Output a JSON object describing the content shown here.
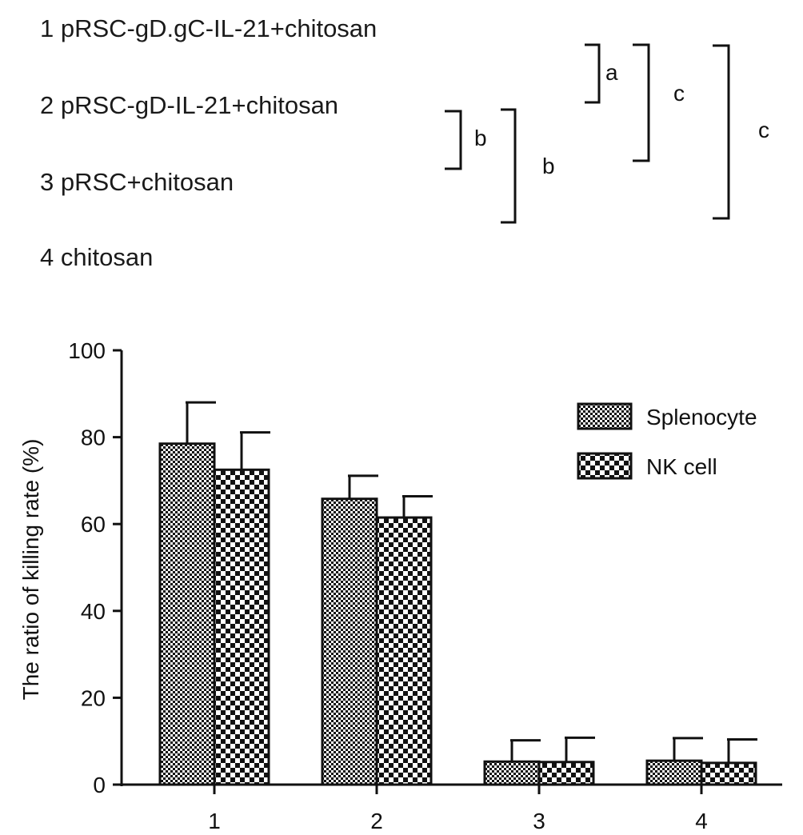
{
  "groups": [
    "1 pRSC-gD.gC-IL-21+chitosan",
    "2 pRSC-gD-IL-21+chitosan",
    "3 pRSC+chitosan",
    "4 chitosan"
  ],
  "significance": [
    {
      "label": "a",
      "between": [
        "1",
        "2"
      ]
    },
    {
      "label": "b",
      "between": [
        "2",
        "3"
      ]
    },
    {
      "label": "b",
      "between": [
        "2",
        "4"
      ]
    },
    {
      "label": "c",
      "between": [
        "1",
        "3"
      ]
    },
    {
      "label": "c",
      "between": [
        "1",
        "4"
      ]
    }
  ],
  "chart_data": {
    "type": "bar",
    "categories": [
      "1",
      "2",
      "3",
      "4"
    ],
    "series": [
      {
        "name": "Splenocyte",
        "values": [
          78.5,
          65.8,
          5.3,
          5.5
        ],
        "errors": [
          9.5,
          5.3,
          4.9,
          5.2
        ]
      },
      {
        "name": "NK cell",
        "values": [
          72.5,
          61.5,
          5.2,
          5.0
        ],
        "errors": [
          8.6,
          4.9,
          5.6,
          5.4
        ]
      }
    ],
    "title": "",
    "xlabel": "",
    "ylabel": "The ratio of killing rate (%)",
    "ylim": [
      0,
      100
    ],
    "yticks": [
      0,
      20,
      40,
      60,
      80,
      100
    ],
    "legend_position": "top-right",
    "grid": false
  }
}
